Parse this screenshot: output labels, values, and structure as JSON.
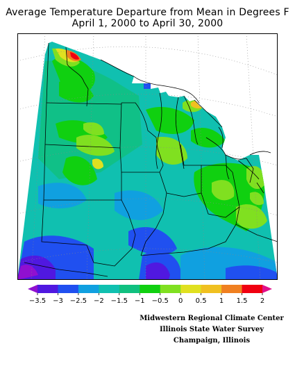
{
  "title": {
    "line1": "Average Temperature Departure from Mean in Degrees F",
    "line2": "April 1, 2000 to April 30, 2000"
  },
  "legend": {
    "ticks": [
      "-3.5",
      "-3",
      "-2.5",
      "-2",
      "-1.5",
      "-1",
      "-0.5",
      "0",
      "0.5",
      "1",
      "1.5",
      "2"
    ],
    "colors": [
      "#9010d0",
      "#5018e0",
      "#2050f0",
      "#10a0e0",
      "#10c0b0",
      "#10c080",
      "#10d010",
      "#80e020",
      "#e0e020",
      "#f0c020",
      "#f08020",
      "#f00010",
      "#e0108a"
    ]
  },
  "credits": {
    "line1": "Midwestern Regional Climate Center",
    "line2": "Illinois State Water Survey",
    "line3": "Champaign, Illinois"
  },
  "map_colors": {
    "frame": "#000000",
    "boundary": "#000000",
    "graticule": "#888888"
  }
}
